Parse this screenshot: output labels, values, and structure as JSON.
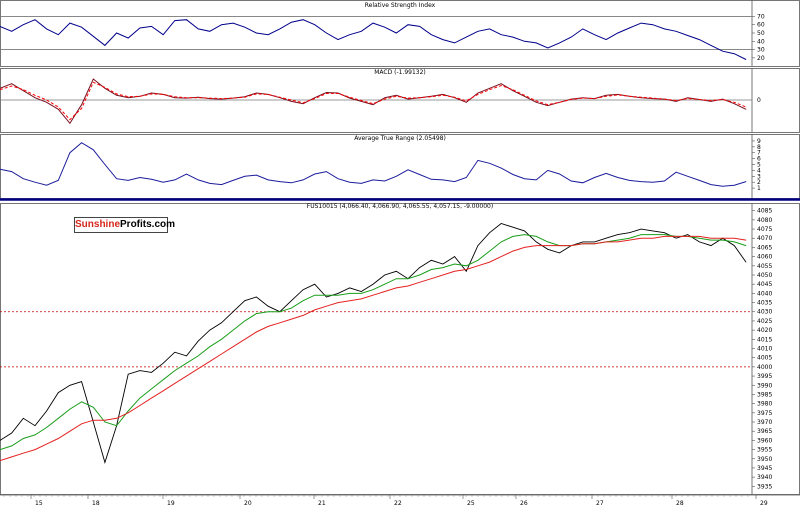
{
  "chart_data": [
    {
      "type": "line",
      "title": "Relative Strength Index",
      "y_ticks": [
        "70",
        "60",
        "50",
        "40",
        "30",
        "20"
      ],
      "ylim": [
        15,
        85
      ],
      "reference_lines": [
        70,
        30
      ],
      "series": [
        {
          "values": [
            58,
            52,
            60,
            66,
            55,
            48,
            62,
            57,
            46,
            35,
            50,
            44,
            56,
            58,
            48,
            65,
            66,
            55,
            52,
            60,
            62,
            57,
            50,
            48,
            55,
            63,
            66,
            60,
            50,
            42,
            48,
            52,
            62,
            57,
            50,
            60,
            58,
            48,
            42,
            38,
            45,
            52,
            55,
            48,
            45,
            40,
            38,
            32,
            38,
            45,
            55,
            48,
            42,
            50,
            56,
            62,
            60,
            55,
            52,
            47,
            42,
            35,
            28,
            25,
            18
          ]
        }
      ]
    },
    {
      "type": "line",
      "title": "MACD (-1.99132)",
      "ylim": [
        -6,
        6
      ],
      "reference_lines": [
        0
      ],
      "series": [
        {
          "values": [
            2.5,
            3.5,
            2,
            0.5,
            -0.5,
            -2,
            -5,
            -1,
            4.5,
            2.5,
            1,
            0.5,
            0.8,
            1.5,
            1.2,
            0.5,
            0.4,
            0.6,
            0.3,
            0.2,
            0.4,
            0.7,
            1.5,
            1.2,
            0.5,
            -0.3,
            -0.8,
            0.5,
            1.6,
            1.5,
            0.4,
            -0.3,
            -1,
            0.5,
            1,
            0.2,
            0.5,
            0.8,
            1.2,
            0.5,
            -0.5,
            1.5,
            2.5,
            3.5,
            2,
            0.8,
            -0.5,
            -1.2,
            -0.5,
            0.2,
            0.5,
            0.3,
            1,
            1.2,
            0.8,
            0.5,
            0.3,
            0.2,
            -0.3,
            0.5,
            0.1,
            -0.3,
            0.2,
            -0.8,
            -2
          ]
        },
        {
          "values": [
            2.2,
            3,
            2.2,
            1,
            0,
            -1.5,
            -4.2,
            -1.8,
            3.8,
            2.7,
            1.3,
            0.7,
            0.8,
            1.3,
            1.2,
            0.7,
            0.5,
            0.5,
            0.4,
            0.3,
            0.4,
            0.6,
            1.3,
            1.2,
            0.6,
            0,
            -0.6,
            0.3,
            1.4,
            1.4,
            0.6,
            -0.1,
            -0.8,
            0.2,
            0.8,
            0.4,
            0.5,
            0.7,
            1,
            0.6,
            -0.2,
            1.2,
            2.2,
            3.1,
            2.2,
            1,
            -0.2,
            -1,
            -0.5,
            0.1,
            0.4,
            0.3,
            0.8,
            1.1,
            0.8,
            0.6,
            0.4,
            0.2,
            -0.1,
            0.3,
            0.1,
            -0.1,
            0.1,
            -0.5,
            -1.5
          ]
        }
      ]
    },
    {
      "type": "line",
      "title": "Average True Range (2.05498)",
      "y_ticks": [
        "9",
        "8",
        "7",
        "6",
        "5",
        "4",
        "3",
        "2",
        "1"
      ],
      "ylim": [
        0,
        9.5
      ],
      "series": [
        {
          "values": [
            4.2,
            3.8,
            2.6,
            2,
            1.5,
            2.3,
            7,
            8.7,
            7.5,
            5,
            2.6,
            2.3,
            2.8,
            2.5,
            2,
            2.4,
            3.4,
            2.4,
            1.8,
            1.6,
            2.3,
            3,
            3.2,
            2.4,
            2.1,
            1.9,
            2.4,
            3.4,
            3.8,
            2.6,
            2,
            1.8,
            2.4,
            2.2,
            3,
            4.1,
            3.3,
            2.5,
            2.4,
            2.1,
            2.8,
            5.7,
            5.2,
            4.4,
            3.3,
            2.6,
            2.4,
            4,
            3.4,
            2.2,
            1.9,
            2.8,
            3.5,
            2.8,
            2.3,
            2.1,
            2,
            2.2,
            3.7,
            3,
            2.3,
            1.6,
            1.3,
            1.5,
            2.1
          ]
        }
      ]
    },
    {
      "type": "line",
      "title": "FUS10015 (4,066.40, 4,066.90, 4,065.55, 4,057.15, -9.00000)",
      "x_labels": [
        "15",
        "18",
        "19",
        "20",
        "21",
        "22",
        "25",
        "26",
        "27",
        "28",
        "29"
      ],
      "y_ticks": [
        "4085",
        "4080",
        "4075",
        "4070",
        "4065",
        "4060",
        "4055",
        "4050",
        "4045",
        "4040",
        "4035",
        "4030",
        "4025",
        "4020",
        "4015",
        "4010",
        "4005",
        "4000",
        "3995",
        "3990",
        "3985",
        "3980",
        "3975",
        "3970",
        "3965",
        "3960",
        "3955",
        "3950",
        "3945",
        "3940",
        "3935"
      ],
      "ylim": [
        3933,
        4087
      ],
      "reference_lines": [
        4030,
        4000
      ],
      "series": [
        {
          "values": [
            3960,
            3964,
            3972,
            3968,
            3976,
            3986,
            3990,
            3992,
            3970,
            3948,
            3968,
            3996,
            3998,
            3997,
            4002,
            4008,
            4006,
            4014,
            4020,
            4024,
            4030,
            4036,
            4038,
            4033,
            4030,
            4036,
            4042,
            4045,
            4038,
            4040,
            4043,
            4041,
            4045,
            4050,
            4052,
            4048,
            4054,
            4058,
            4056,
            4060,
            4052,
            4066,
            4073,
            4078,
            4076,
            4074,
            4068,
            4064,
            4062,
            4066,
            4068,
            4068,
            4070,
            4072,
            4073,
            4075,
            4074,
            4073,
            4070,
            4072,
            4068,
            4066,
            4070,
            4066,
            4057
          ]
        },
        {
          "name": "Green MA",
          "values": [
            3955,
            3957,
            3961,
            3963,
            3967,
            3972,
            3977,
            3981,
            3978,
            3970,
            3968,
            3976,
            3983,
            3988,
            3993,
            3998,
            4002,
            4006,
            4011,
            4015,
            4020,
            4025,
            4029,
            4030,
            4030,
            4032,
            4036,
            4039,
            4039,
            4039,
            4040,
            4040,
            4042,
            4045,
            4048,
            4048,
            4050,
            4053,
            4054,
            4056,
            4055,
            4058,
            4063,
            4068,
            4071,
            4072,
            4071,
            4068,
            4066,
            4066,
            4067,
            4067,
            4068,
            4069,
            4070,
            4072,
            4072,
            4072,
            4071,
            4071,
            4070,
            4069,
            4069,
            4068,
            4066
          ]
        },
        {
          "name": "Red MA",
          "values": [
            3949,
            3951,
            3953,
            3955,
            3958,
            3961,
            3965,
            3969,
            3971,
            3971,
            3972,
            3975,
            3979,
            3983,
            3987,
            3991,
            3995,
            3999,
            4003,
            4007,
            4011,
            4015,
            4019,
            4022,
            4024,
            4026,
            4028,
            4031,
            4033,
            4035,
            4036,
            4037,
            4039,
            4041,
            4043,
            4044,
            4046,
            4048,
            4050,
            4052,
            4053,
            4055,
            4057,
            4060,
            4063,
            4065,
            4066,
            4066,
            4066,
            4066,
            4067,
            4067,
            4068,
            4068,
            4069,
            4070,
            4070,
            4071,
            4071,
            4071,
            4071,
            4070,
            4070,
            4070,
            4069
          ]
        }
      ]
    }
  ],
  "logo": {
    "part1": "Sunshine",
    "part2": "Profits.com"
  },
  "colors": {
    "price": "#000000",
    "rsi": "#00008b",
    "macd": "#7a1020",
    "signal": "#ff0000",
    "atr": "#1c1c9c",
    "ma_fast": "#1a9e1a",
    "ma_slow": "#e52222",
    "divider": "#000080"
  }
}
